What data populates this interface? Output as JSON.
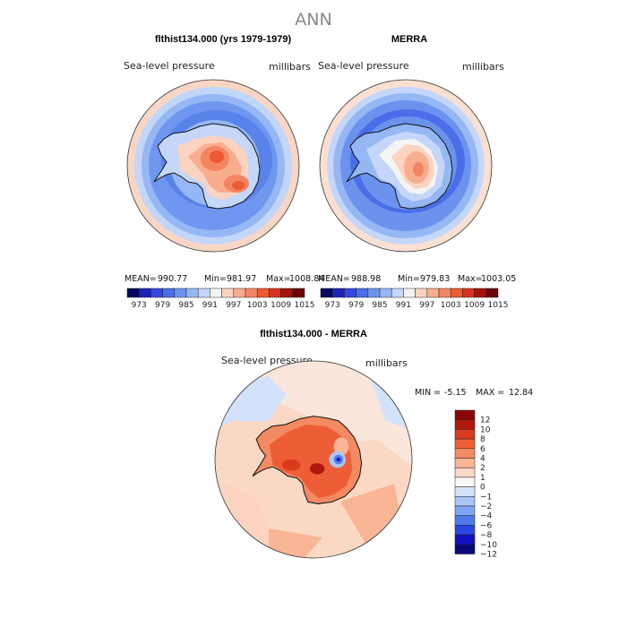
{
  "figure": {
    "title": "ANN"
  },
  "panels": [
    {
      "title": "flthist134.000 (yrs 1979-1979)",
      "left_label": "Sea-level pressure",
      "right_label": "millibars",
      "stats": {
        "mean_label": "MEAN=",
        "mean": "990.77",
        "min_label": "Min=",
        "min": "981.97",
        "max_label": "Max=",
        "max": "1008.84"
      }
    },
    {
      "title": "MERRA",
      "left_label": "Sea-level pressure",
      "right_label": "millibars",
      "stats": {
        "mean_label": "MEAN=",
        "mean": "988.98",
        "min_label": "Min=",
        "min": "979.83",
        "max_label": "Max=",
        "max": "1003.05"
      }
    },
    {
      "title": "flthist134.000 - MERRA",
      "left_label": "Sea-level pressure",
      "right_label": "millibars",
      "stats": {
        "min_label": "MIN =",
        "min": "-5.15",
        "max_label": "MAX =",
        "max": "12.84"
      }
    }
  ],
  "colorbar_main": {
    "colors": [
      "#06065e",
      "#1d23b6",
      "#3548e0",
      "#4a6ee8",
      "#6b93ee",
      "#95b7f4",
      "#c4d7fa",
      "#f4f4f4",
      "#fbd3c0",
      "#f9ad8f",
      "#f48561",
      "#ee5a36",
      "#d9321c",
      "#a6120e",
      "#6b0408"
    ],
    "tick_labels": [
      "973",
      "979",
      "985",
      "991",
      "997",
      "1003",
      "1009",
      "1015"
    ]
  },
  "colorbar_diff": {
    "colors": [
      "#08087a",
      "#1010c0",
      "#2a46e2",
      "#4f7aec",
      "#7ea5f2",
      "#aac6f7",
      "#d3e2fb",
      "#f7f7f7",
      "#fbd8c4",
      "#f9b594",
      "#f48a62",
      "#ee5e36",
      "#d9391e",
      "#b0180e",
      "#8a0606"
    ],
    "tick_labels": [
      "12",
      "10",
      "8",
      "6",
      "4",
      "2",
      "1",
      "0",
      "−1",
      "−2",
      "−4",
      "−6",
      "−8",
      "−10",
      "−12"
    ]
  }
}
